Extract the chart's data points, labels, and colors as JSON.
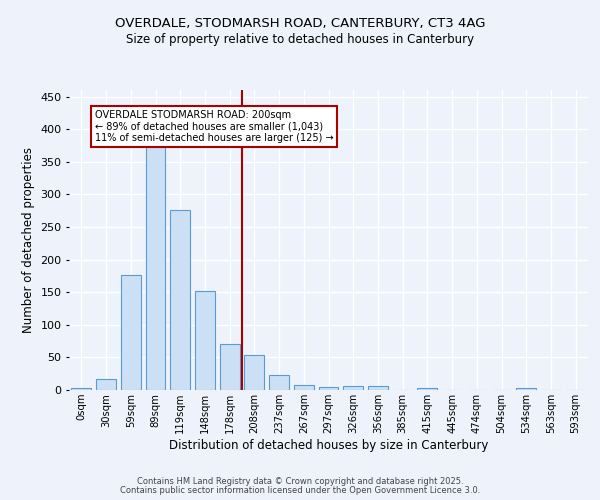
{
  "title_line1": "OVERDALE, STODMARSH ROAD, CANTERBURY, CT3 4AG",
  "title_line2": "Size of property relative to detached houses in Canterbury",
  "xlabel": "Distribution of detached houses by size in Canterbury",
  "ylabel": "Number of detached properties",
  "bar_labels": [
    "0sqm",
    "30sqm",
    "59sqm",
    "89sqm",
    "119sqm",
    "148sqm",
    "178sqm",
    "208sqm",
    "237sqm",
    "267sqm",
    "297sqm",
    "326sqm",
    "356sqm",
    "385sqm",
    "415sqm",
    "445sqm",
    "474sqm",
    "504sqm",
    "534sqm",
    "563sqm",
    "593sqm"
  ],
  "bar_values": [
    3,
    17,
    176,
    373,
    276,
    152,
    70,
    54,
    23,
    8,
    5,
    6,
    6,
    0,
    3,
    0,
    0,
    0,
    3,
    0,
    0
  ],
  "bar_color": "#cce0f5",
  "bar_edge_color": "#5b9bd5",
  "property_line_color": "#aa0000",
  "property_line_x": 6.5,
  "annotation_text": "OVERDALE STODMARSH ROAD: 200sqm\n← 89% of detached houses are smaller (1,043)\n11% of semi-detached houses are larger (125) →",
  "annotation_box_color": "#ffffff",
  "annotation_box_edge": "#aa0000",
  "ylim": [
    0,
    460
  ],
  "yticks": [
    0,
    50,
    100,
    150,
    200,
    250,
    300,
    350,
    400,
    450
  ],
  "footer_line1": "Contains HM Land Registry data © Crown copyright and database right 2025.",
  "footer_line2": "Contains public sector information licensed under the Open Government Licence 3.0.",
  "bg_color": "#eef3fb",
  "grid_color": "#ffffff"
}
